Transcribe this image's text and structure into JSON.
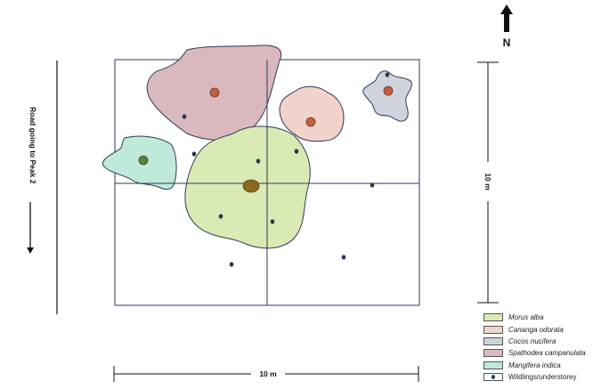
{
  "north_label": "N",
  "road_label": "Road going to Peak 2",
  "dimension_right": "10 m",
  "dimension_bottom": "10 m",
  "legend": [
    {
      "label": "Morus alba",
      "fill": "#d9eab5",
      "italic": true
    },
    {
      "label": "Cananga odorata",
      "fill": "#f1d3cc",
      "italic": true
    },
    {
      "label": "Cocos nucifera",
      "fill": "#cfd3dc",
      "italic": true
    },
    {
      "label": "Spathodea campanulata",
      "fill": "#d9b9bd",
      "italic": true
    },
    {
      "label": "Mangifera indica",
      "fill": "#bfeadb",
      "italic": true
    },
    {
      "label": "Wildlings/understorey",
      "fill": "#ffffff",
      "italic": false,
      "dot": true
    }
  ],
  "colors": {
    "morus": "#d9eab5",
    "cananga": "#f1d3cc",
    "cocos": "#cfd3dc",
    "spathodea": "#d9b9bd",
    "mangifera": "#bfeadb",
    "trunk_red": "#c2603f",
    "trunk_green": "#5e7d3a",
    "trunk_brown": "#8b6a1e",
    "wildling": "#2a3550",
    "outline": "#2e3a55"
  }
}
